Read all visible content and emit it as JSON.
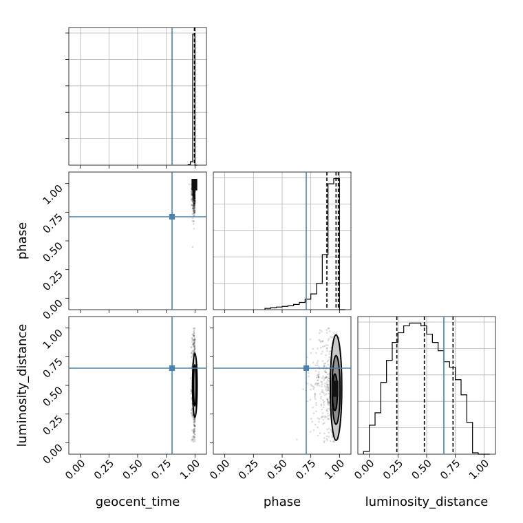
{
  "chart_data": {
    "type": "corner",
    "parameters": [
      "geocent_time",
      "phase",
      "luminosity_distance"
    ],
    "tick_labels": [
      "0.00",
      "0.25",
      "0.50",
      "0.75",
      "1.00"
    ],
    "axis_range": [
      -0.1,
      1.1
    ],
    "truths": {
      "geocent_time": 0.8,
      "phase": 0.71,
      "luminosity_distance": 0.65
    },
    "quantiles": {
      "geocent_time": [
        0.995,
        0.998,
        0.999
      ],
      "phase": [
        0.89,
        0.97,
        0.99
      ],
      "luminosity_distance": [
        0.24,
        0.48,
        0.73
      ]
    },
    "histograms": {
      "geocent_time": {
        "bin_edges": [
          0.94,
          0.96,
          0.98,
          1.0,
          1.02
        ],
        "counts": [
          0.5,
          2.5,
          95,
          0
        ]
      },
      "phase": {
        "bin_edges": [
          0.35,
          0.4,
          0.45,
          0.5,
          0.55,
          0.6,
          0.65,
          0.7,
          0.75,
          0.8,
          0.85,
          0.9,
          0.95,
          1.0,
          1.05
        ],
        "counts": [
          1,
          1.5,
          2,
          2.5,
          3,
          4,
          5.5,
          8,
          12,
          20,
          42,
          96,
          100,
          0
        ]
      },
      "luminosity_distance": {
        "bin_edges": [
          -0.05,
          0.0,
          0.05,
          0.1,
          0.15,
          0.2,
          0.25,
          0.3,
          0.35,
          0.4,
          0.45,
          0.5,
          0.55,
          0.6,
          0.65,
          0.7,
          0.75,
          0.8,
          0.85,
          0.9,
          0.95,
          1.0,
          1.05
        ],
        "counts": [
          2,
          21,
          30,
          52,
          68,
          81,
          88,
          93,
          95,
          95,
          93,
          87,
          81,
          75,
          67,
          63,
          54,
          43,
          23,
          1,
          0,
          0
        ]
      }
    },
    "joint": [
      {
        "x": "geocent_time",
        "y": "phase",
        "x_center": 0.998,
        "x_spread": 0.012,
        "y_center": 0.95,
        "y_spread": 0.12,
        "contours": [],
        "mode_box": [
          0.97,
          0.94,
          1.02,
          1.04
        ]
      },
      {
        "x": "geocent_time",
        "y": "luminosity_distance",
        "x_center": 0.998,
        "x_spread": 0.012,
        "y_center": 0.5,
        "y_spread": 0.25,
        "contours": [
          [
            0.999,
            0.5,
            0.02,
            0.28
          ],
          [
            0.999,
            0.5,
            0.012,
            0.18
          ]
        ],
        "mode_box": []
      },
      {
        "x": "phase",
        "y": "luminosity_distance",
        "x_center": 0.95,
        "x_spread": 0.1,
        "y_center": 0.5,
        "y_spread": 0.25,
        "contours": [
          [
            0.97,
            0.48,
            0.05,
            0.46
          ],
          [
            0.97,
            0.46,
            0.035,
            0.3
          ],
          [
            0.96,
            0.44,
            0.022,
            0.16
          ]
        ],
        "mode_box": [
          0.93,
          0.4,
          0.99,
          0.54
        ]
      }
    ],
    "grid": true
  }
}
